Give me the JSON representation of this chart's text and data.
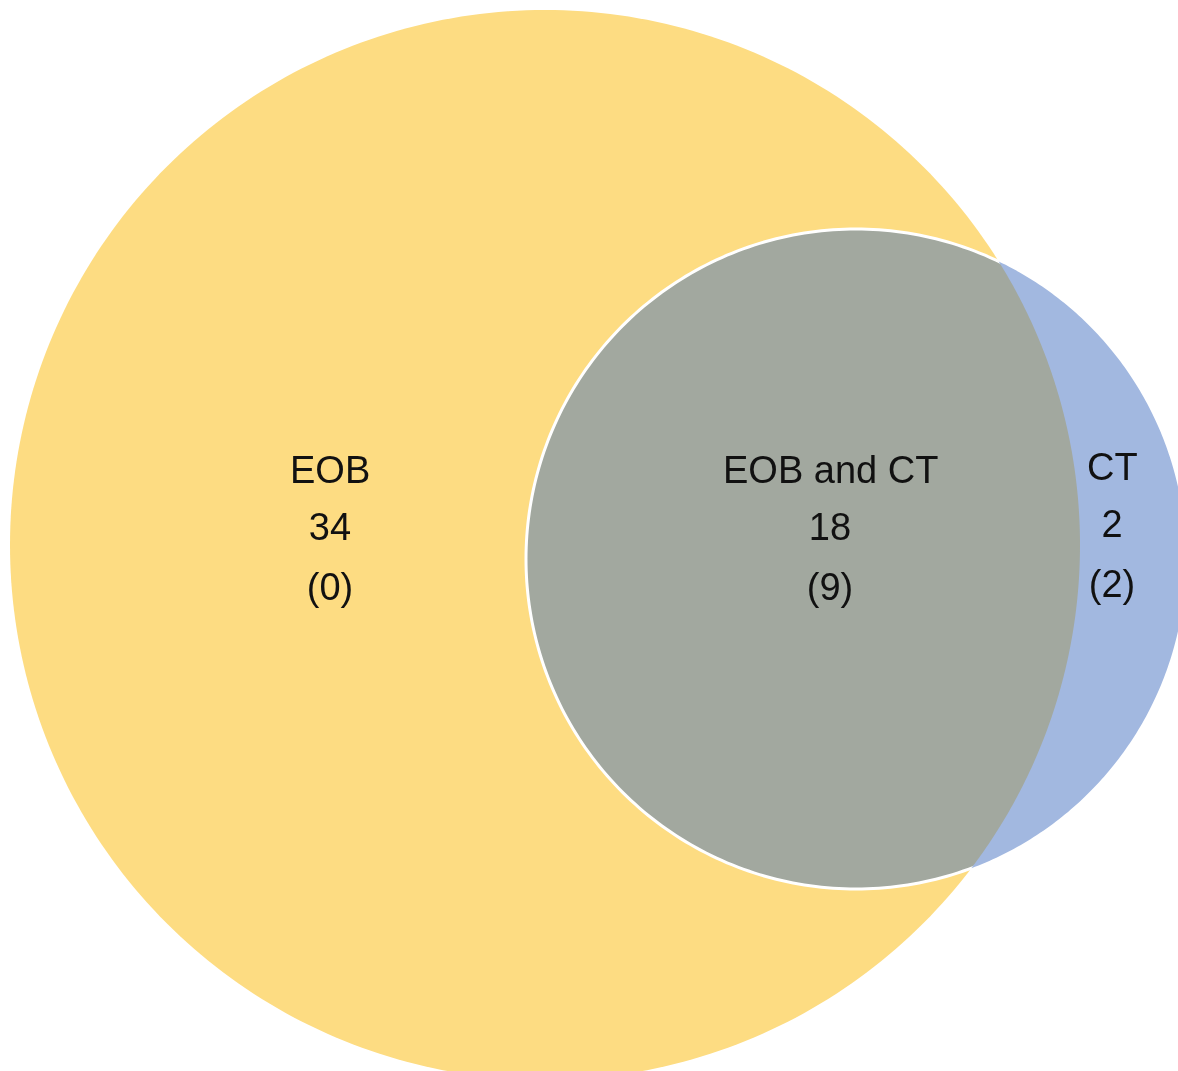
{
  "chart_data": {
    "type": "other",
    "categories": [
      "EOB",
      "EOB and CT",
      "CT"
    ],
    "data_labels": true,
    "series": [
      {
        "colors": [
          "#fddc82",
          "#a2a89f",
          "#a2b8e0"
        ],
        "values": [
          34,
          18,
          2
        ]
      },
      {
        "values": [
          0,
          9,
          2
        ],
        "value_labels": [
          "(0)",
          "(9)",
          "(2)"
        ]
      }
    ]
  }
}
